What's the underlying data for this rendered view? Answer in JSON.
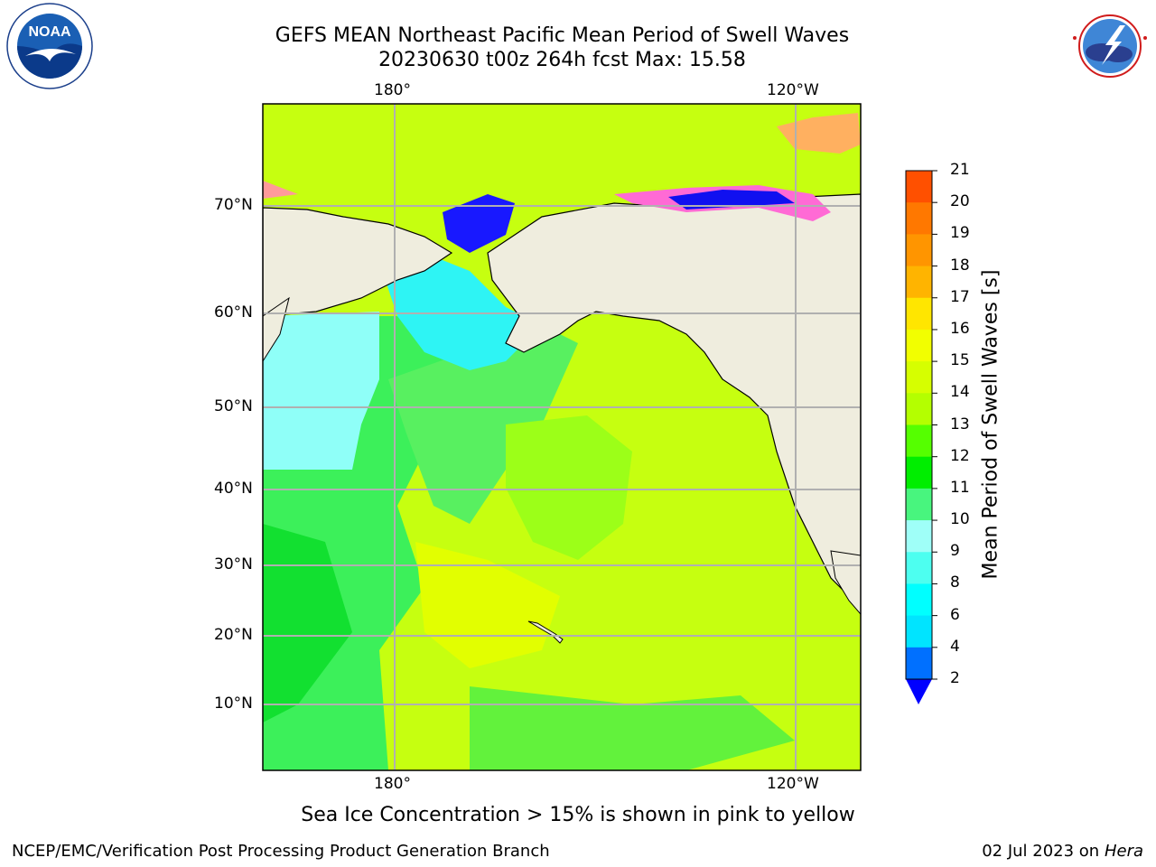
{
  "header": {
    "title_line1": "GEFS MEAN Northeast Pacific Mean Period of Swell Waves",
    "title_line2": "20230630 t00z 264h fcst   Max: 15.58"
  },
  "logos": {
    "left": {
      "icon": "noaa-logo",
      "text": "NOAA",
      "ring_text": "NATIONAL OCEANIC AND ATMOSPHERIC ADMINISTRATION · U.S. DEPARTMENT OF COMMERCE"
    },
    "right": {
      "icon": "nws-logo",
      "ring_text": "NATIONAL WEATHER SERVICE"
    }
  },
  "map": {
    "lon_labels_top": [
      "180°",
      "120°W"
    ],
    "lon_labels_bottom": [
      "180°",
      "120°W"
    ],
    "lat_labels": [
      "70°N",
      "60°N",
      "50°N",
      "40°N",
      "30°N",
      "20°N",
      "10°N"
    ],
    "land_color": "#efedde",
    "gridline_color": "#b0b0b0"
  },
  "colorbar": {
    "title": "Mean Period of Swell Waves [s]",
    "ticks": [
      "21",
      "20",
      "19",
      "18",
      "17",
      "16",
      "15",
      "14",
      "13",
      "12",
      "11",
      "10",
      "9",
      "8",
      "6",
      "4",
      "2"
    ],
    "colors_top_to_bottom": [
      "#ff0000",
      "#ff2a00",
      "#ff5000",
      "#ff7800",
      "#ff9500",
      "#ffb400",
      "#ffe600",
      "#f2ff00",
      "#d6ff00",
      "#b4ff00",
      "#55ff00",
      "#00ee00",
      "#48f57e",
      "#9ffff8",
      "#4dfff0",
      "#00ffff",
      "#00e4ff",
      "#0070ff"
    ],
    "extend_color": "#0000ff"
  },
  "notes": {
    "ice": "Sea Ice Concentration > 15% is shown in pink to yellow"
  },
  "footer": {
    "left": "NCEP/EMC/Verification Post Processing Product Generation Branch",
    "date": "02 Jul 2023 on ",
    "machine": "Hera"
  }
}
